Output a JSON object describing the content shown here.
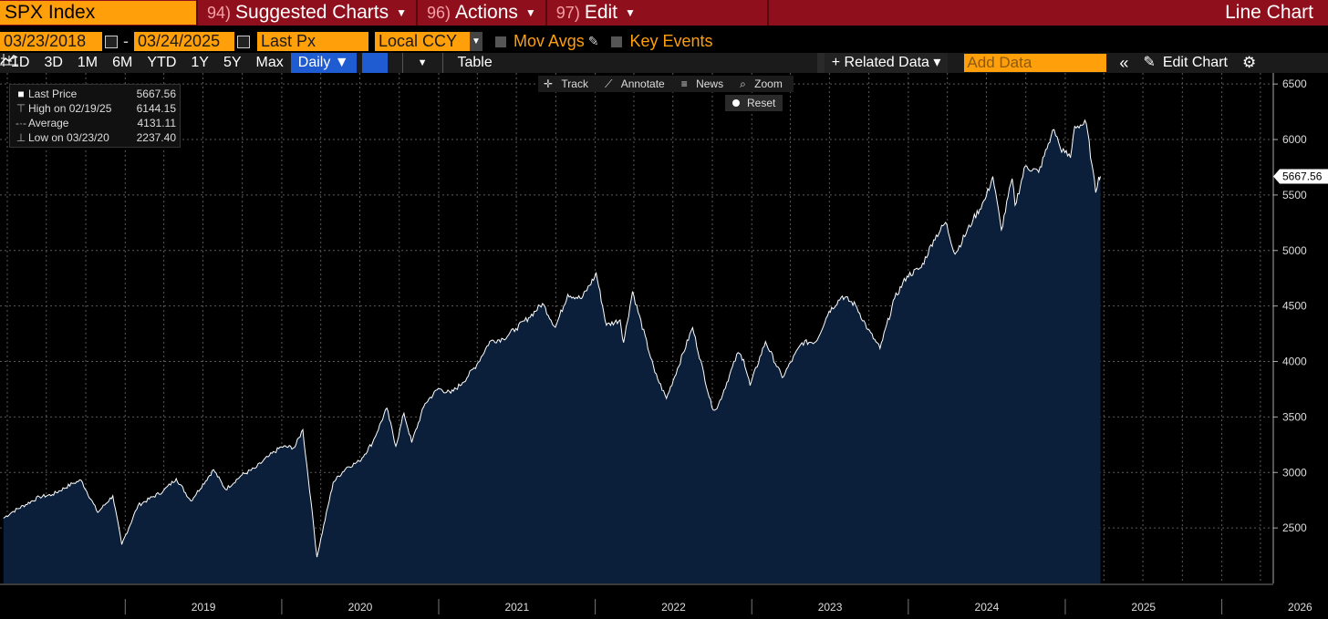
{
  "header": {
    "ticker": "SPX Index",
    "menus": [
      {
        "num": "94)",
        "label": "Suggested Charts"
      },
      {
        "num": "96)",
        "label": "Actions"
      },
      {
        "num": "97)",
        "label": "Edit"
      }
    ],
    "chart_type": "Line Chart"
  },
  "params": {
    "start_date": "03/23/2018",
    "end_date": "03/24/2025",
    "field": "Last Px",
    "currency": "Local CCY",
    "mov_avgs": "Mov Avgs",
    "key_events": "Key Events"
  },
  "toolbar": {
    "periods": [
      "1D",
      "3D",
      "1M",
      "6M",
      "YTD",
      "1Y",
      "5Y",
      "Max"
    ],
    "frequency": "Daily ▼",
    "table": "Table",
    "related": "+ Related Data ▾",
    "add_data_placeholder": "Add Data",
    "edit_chart": "Edit Chart"
  },
  "chart_tools": {
    "track": "Track",
    "annotate": "Annotate",
    "news": "News",
    "zoom": "Zoom",
    "reset": "Reset"
  },
  "legend": {
    "last_label": "Last Price",
    "last_value": "5667.56",
    "high_label": "High on 02/19/25",
    "high_value": "6144.15",
    "avg_label": "Average",
    "avg_value": "4131.11",
    "low_label": "Low on 03/23/20",
    "low_value": "2237.40"
  },
  "colors": {
    "line": "#ffffff",
    "area_fill": "#0b1f3a",
    "background": "#000000",
    "grid": "#5a5a5a",
    "accent_orange": "#ff9f0a",
    "title_bar": "#8f0f1c"
  },
  "chart_data": {
    "type": "area",
    "title": "",
    "xlabel": "",
    "ylabel": "",
    "ylim": [
      2000,
      6600
    ],
    "yticks": [
      2500,
      3000,
      3500,
      4000,
      4500,
      5000,
      5500,
      6000,
      6500
    ],
    "xtick_labels": [
      "2019",
      "2020",
      "2021",
      "2022",
      "2023",
      "2024",
      "2025",
      "2026"
    ],
    "grid": true,
    "last_value_label": "5667.56",
    "series": [
      {
        "values": [
          {
            "x": "2018-03-23",
            "y": 2588
          },
          {
            "x": "2018-04-15",
            "y": 2650
          },
          {
            "x": "2018-06-15",
            "y": 2780
          },
          {
            "x": "2018-07-15",
            "y": 2800
          },
          {
            "x": "2018-08-31",
            "y": 2900
          },
          {
            "x": "2018-09-20",
            "y": 2930
          },
          {
            "x": "2018-10-29",
            "y": 2640
          },
          {
            "x": "2018-12-03",
            "y": 2790
          },
          {
            "x": "2018-12-24",
            "y": 2351
          },
          {
            "x": "2019-01-31",
            "y": 2704
          },
          {
            "x": "2019-03-31",
            "y": 2834
          },
          {
            "x": "2019-04-30",
            "y": 2945
          },
          {
            "x": "2019-06-03",
            "y": 2744
          },
          {
            "x": "2019-07-26",
            "y": 3025
          },
          {
            "x": "2019-08-23",
            "y": 2847
          },
          {
            "x": "2019-09-30",
            "y": 2977
          },
          {
            "x": "2019-10-31",
            "y": 3038
          },
          {
            "x": "2019-11-30",
            "y": 3141
          },
          {
            "x": "2019-12-31",
            "y": 3231
          },
          {
            "x": "2020-01-31",
            "y": 3226
          },
          {
            "x": "2020-02-19",
            "y": 3386
          },
          {
            "x": "2020-03-09",
            "y": 2746
          },
          {
            "x": "2020-03-23",
            "y": 2237
          },
          {
            "x": "2020-04-30",
            "y": 2912
          },
          {
            "x": "2020-05-31",
            "y": 3044
          },
          {
            "x": "2020-06-30",
            "y": 3100
          },
          {
            "x": "2020-07-31",
            "y": 3271
          },
          {
            "x": "2020-09-02",
            "y": 3580
          },
          {
            "x": "2020-09-23",
            "y": 3237
          },
          {
            "x": "2020-10-12",
            "y": 3534
          },
          {
            "x": "2020-10-30",
            "y": 3270
          },
          {
            "x": "2020-11-30",
            "y": 3621
          },
          {
            "x": "2020-12-31",
            "y": 3756
          },
          {
            "x": "2021-01-29",
            "y": 3714
          },
          {
            "x": "2021-02-26",
            "y": 3811
          },
          {
            "x": "2021-03-31",
            "y": 3973
          },
          {
            "x": "2021-04-30",
            "y": 4181
          },
          {
            "x": "2021-05-31",
            "y": 4204
          },
          {
            "x": "2021-06-30",
            "y": 4297
          },
          {
            "x": "2021-07-30",
            "y": 4395
          },
          {
            "x": "2021-08-31",
            "y": 4523
          },
          {
            "x": "2021-09-30",
            "y": 4308
          },
          {
            "x": "2021-10-29",
            "y": 4605
          },
          {
            "x": "2021-11-30",
            "y": 4567
          },
          {
            "x": "2021-12-31",
            "y": 4766
          },
          {
            "x": "2022-01-03",
            "y": 4797
          },
          {
            "x": "2022-01-27",
            "y": 4326
          },
          {
            "x": "2022-02-28",
            "y": 4374
          },
          {
            "x": "2022-03-08",
            "y": 4170
          },
          {
            "x": "2022-03-29",
            "y": 4631
          },
          {
            "x": "2022-05-20",
            "y": 3901
          },
          {
            "x": "2022-06-16",
            "y": 3667
          },
          {
            "x": "2022-08-16",
            "y": 4305
          },
          {
            "x": "2022-09-30",
            "y": 3586
          },
          {
            "x": "2022-10-12",
            "y": 3577
          },
          {
            "x": "2022-11-30",
            "y": 4080
          },
          {
            "x": "2022-12-13",
            "y": 4019
          },
          {
            "x": "2022-12-28",
            "y": 3783
          },
          {
            "x": "2023-02-02",
            "y": 4179
          },
          {
            "x": "2023-03-13",
            "y": 3855
          },
          {
            "x": "2023-04-28",
            "y": 4169
          },
          {
            "x": "2023-05-31",
            "y": 4180
          },
          {
            "x": "2023-06-30",
            "y": 4450
          },
          {
            "x": "2023-07-31",
            "y": 4589
          },
          {
            "x": "2023-08-31",
            "y": 4508
          },
          {
            "x": "2023-09-29",
            "y": 4288
          },
          {
            "x": "2023-10-27",
            "y": 4117
          },
          {
            "x": "2023-11-30",
            "y": 4568
          },
          {
            "x": "2023-12-29",
            "y": 4770
          },
          {
            "x": "2024-01-31",
            "y": 4846
          },
          {
            "x": "2024-02-29",
            "y": 5096
          },
          {
            "x": "2024-03-28",
            "y": 5254
          },
          {
            "x": "2024-04-19",
            "y": 4967
          },
          {
            "x": "2024-05-31",
            "y": 5278
          },
          {
            "x": "2024-06-28",
            "y": 5460
          },
          {
            "x": "2024-07-16",
            "y": 5667
          },
          {
            "x": "2024-08-05",
            "y": 5186
          },
          {
            "x": "2024-08-30",
            "y": 5648
          },
          {
            "x": "2024-09-06",
            "y": 5408
          },
          {
            "x": "2024-09-30",
            "y": 5762
          },
          {
            "x": "2024-10-31",
            "y": 5705
          },
          {
            "x": "2024-11-29",
            "y": 6032
          },
          {
            "x": "2024-12-06",
            "y": 6090
          },
          {
            "x": "2024-12-20",
            "y": 5930
          },
          {
            "x": "2024-12-31",
            "y": 5882
          },
          {
            "x": "2025-01-13",
            "y": 5836
          },
          {
            "x": "2025-01-23",
            "y": 6119
          },
          {
            "x": "2025-02-19",
            "y": 6144
          },
          {
            "x": "2025-03-04",
            "y": 5778
          },
          {
            "x": "2025-03-13",
            "y": 5522
          },
          {
            "x": "2025-03-20",
            "y": 5663
          },
          {
            "x": "2025-03-24",
            "y": 5667.56
          }
        ]
      }
    ]
  }
}
